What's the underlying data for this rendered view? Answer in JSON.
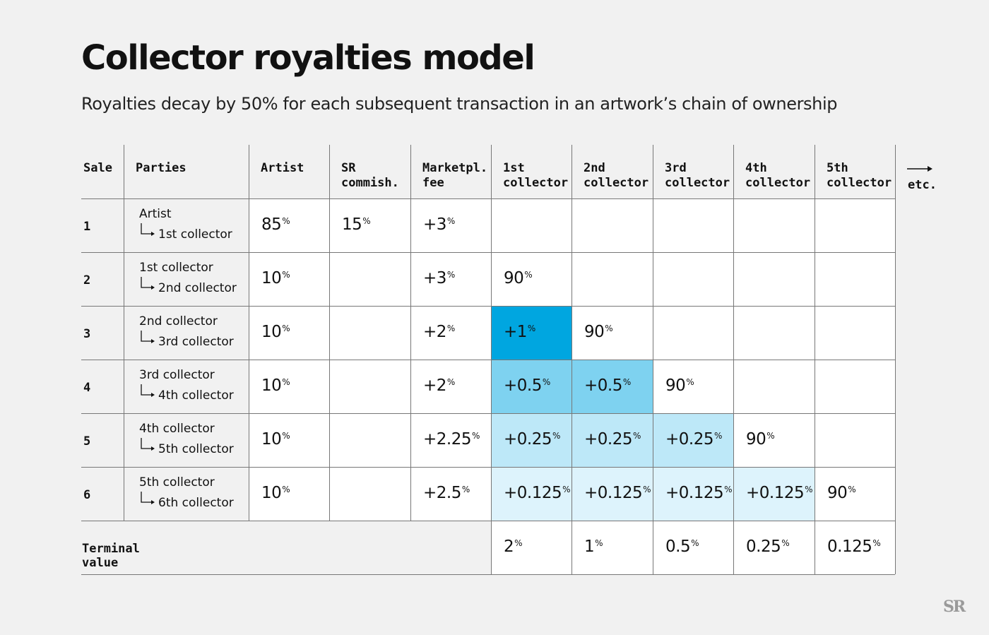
{
  "title": "Collector royalties model",
  "subtitle": "Royalties decay by 50% for each subsequent transaction in an artwork’s chain of ownership",
  "logo": "SR",
  "colors": {
    "background": "#f1f1f1",
    "cell_white": "#ffffff",
    "shade_1": "#00a6e0",
    "shade_2": "#7ed2f0",
    "shade_3": "#bde8f8",
    "shade_4": "#ddf3fc",
    "grid_line": "#777777"
  },
  "chart_data": {
    "type": "table",
    "headers": [
      "Sale",
      "Parties",
      "Artist",
      "SR\ncommish.",
      "Marketpl.\nfee",
      "1st\ncollector",
      "2nd\ncollector",
      "3rd\ncollector",
      "4th\ncollector",
      "5th\ncollector"
    ],
    "etc_label": "etc.",
    "rows": [
      {
        "sale": "1",
        "from": "Artist",
        "to": "1st collector",
        "artist": "85",
        "sr": "15",
        "fee": "+3",
        "collectors": [
          "",
          "",
          "",
          "",
          ""
        ]
      },
      {
        "sale": "2",
        "from": "1st collector",
        "to": "2nd collector",
        "artist": "10",
        "sr": "",
        "fee": "+3",
        "collectors": [
          "90",
          "",
          "",
          "",
          ""
        ]
      },
      {
        "sale": "3",
        "from": "2nd collector",
        "to": "3rd collector",
        "artist": "10",
        "sr": "",
        "fee": "+2",
        "collectors": [
          "+1",
          "90",
          "",
          "",
          ""
        ]
      },
      {
        "sale": "4",
        "from": "3rd collector",
        "to": "4th collector",
        "artist": "10",
        "sr": "",
        "fee": "+2",
        "collectors": [
          "+0.5",
          "+0.5",
          "90",
          "",
          ""
        ]
      },
      {
        "sale": "5",
        "from": "4th collector",
        "to": "5th collector",
        "artist": "10",
        "sr": "",
        "fee": "+2.25",
        "collectors": [
          "+0.25",
          "+0.25",
          "+0.25",
          "90",
          ""
        ]
      },
      {
        "sale": "6",
        "from": "5th collector",
        "to": "6th collector",
        "artist": "10",
        "sr": "",
        "fee": "+2.5",
        "collectors": [
          "+0.125",
          "+0.125",
          "+0.125",
          "+0.125",
          "90"
        ]
      }
    ],
    "shading": [
      [
        null,
        null,
        null,
        null,
        null
      ],
      [
        null,
        null,
        null,
        null,
        null
      ],
      [
        1,
        null,
        null,
        null,
        null
      ],
      [
        2,
        2,
        null,
        null,
        null
      ],
      [
        3,
        3,
        3,
        null,
        null
      ],
      [
        4,
        4,
        4,
        4,
        null
      ]
    ],
    "terminal_label": "Terminal value",
    "terminal_values": [
      "2",
      "1",
      "0.5",
      "0.25",
      "0.125"
    ],
    "unit_symbol": "%"
  }
}
